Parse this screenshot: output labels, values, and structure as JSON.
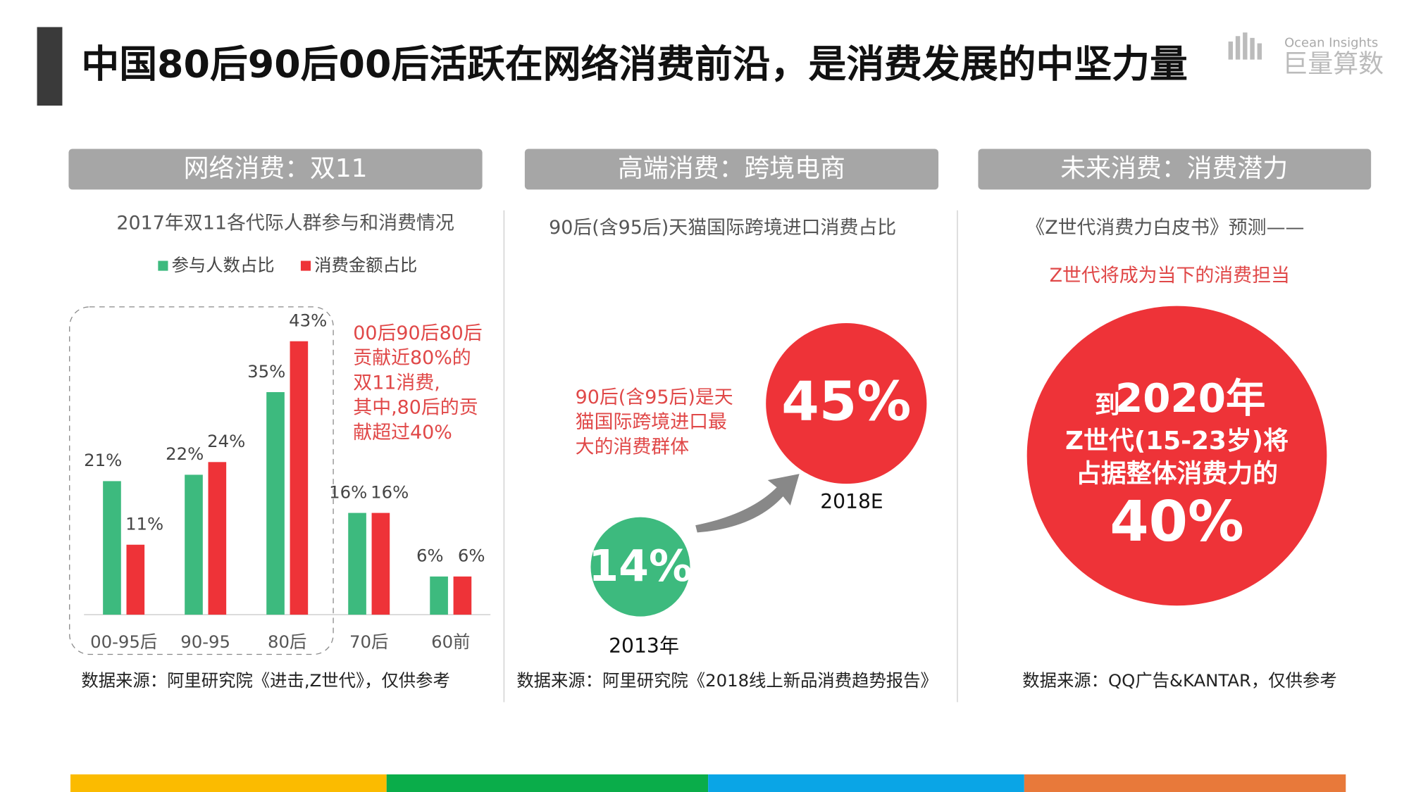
{
  "header": {
    "title": "中国80后90后00后活跃在网络消费前沿，是消费发展的中坚力量",
    "logo_en": "Ocean Insights",
    "logo_cn": "巨量算数"
  },
  "panels": [
    {
      "title": "网络消费：双11",
      "note": [
        "00后90后80后",
        "贡献近80%的",
        "双11消费,",
        "其中,80后的贡",
        "献超过40%"
      ],
      "source": "数据来源：阿里研究院《进击,Z世代》，仅供参考"
    },
    {
      "title": "高端消费：跨境电商",
      "subtitle": "90后(含95后)天猫国际跨境进口消费占比",
      "note": [
        "90后(含95后)是天",
        "猫国际跨境进口最",
        "大的消费群体"
      ],
      "circles": [
        {
          "value": "14%",
          "label": "2013年"
        },
        {
          "value": "45%",
          "label": "2018E"
        }
      ],
      "source": "数据来源：阿里研究院《2018线上新品消费趋势报告》"
    },
    {
      "title": "未来消费：消费潜力",
      "subtitle": "《Z世代消费力白皮书》预测——",
      "highlight": "Z世代将成为当下的消费担当",
      "circle": [
        "到",
        "2020年",
        "Z世代(15-23岁)将",
        "占据整体消费力的",
        "40%"
      ],
      "source": "数据来源：QQ广告&KANTAR，仅供参考"
    }
  ],
  "chart_data": {
    "type": "bar",
    "title": "2017年双11各代际人群参与和消费情况",
    "categories": [
      "00-95后",
      "90-95",
      "80后",
      "70后",
      "60前"
    ],
    "series": [
      {
        "name": "参与人数占比",
        "color": "#3dba7e",
        "values": [
          21,
          22,
          35,
          16,
          6
        ],
        "value_labels": [
          "21%",
          "22%",
          "35%",
          "16%",
          "6%"
        ]
      },
      {
        "name": "消费金额占比",
        "color": "#ee3338",
        "values": [
          11,
          24,
          43,
          16,
          6
        ],
        "value_labels": [
          "11%",
          "24%",
          "43%",
          "16%",
          "6%"
        ]
      }
    ],
    "ylim": [
      0,
      45
    ]
  }
}
